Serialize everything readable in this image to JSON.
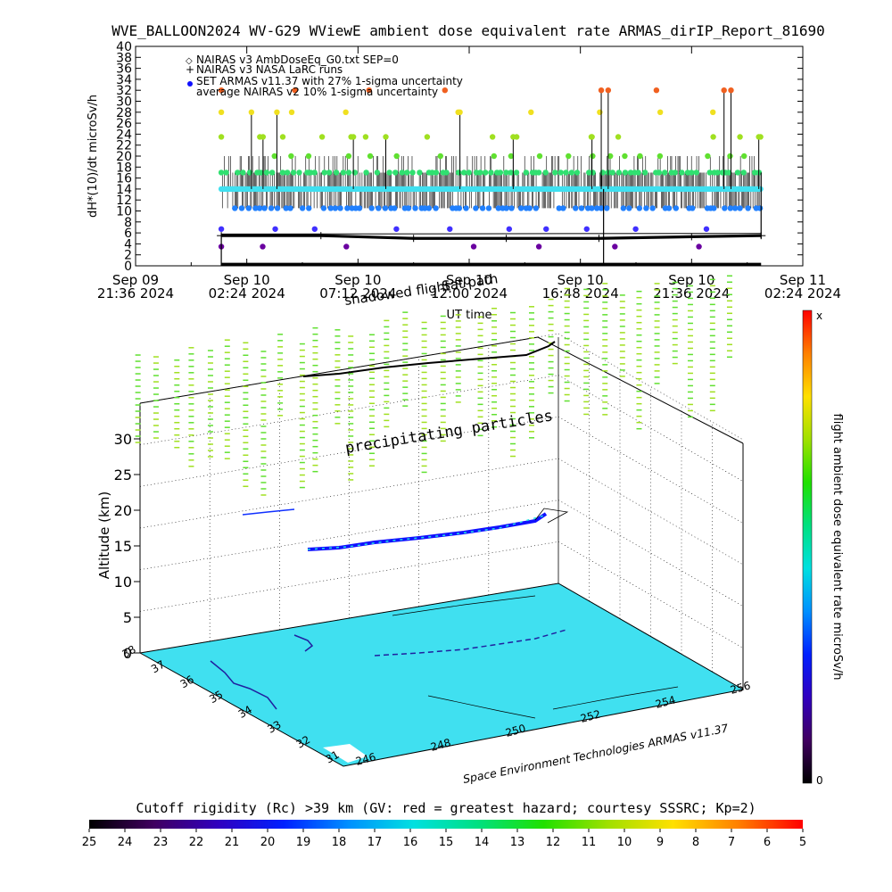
{
  "title": "WVE_BALLOON2024 WV-G29 WViewE ambient dose equivalent rate ARMAS_dirIP_Report_81690",
  "chart_data": [
    {
      "type": "scatter",
      "ylabel": "dH*(10)/dt microSv/h",
      "xlabel": "UT time",
      "ylim": [
        0,
        40
      ],
      "yticks": [
        "0",
        "2",
        "4",
        "6",
        "8",
        "10",
        "12",
        "14",
        "16",
        "18",
        "20",
        "22",
        "24",
        "26",
        "28",
        "30",
        "32",
        "34",
        "36",
        "38",
        "40"
      ],
      "xticks": [
        {
          "line1": "Sep 09",
          "line2": "21:36 2024"
        },
        {
          "line1": "Sep 10",
          "line2": "02:24 2024"
        },
        {
          "line1": "Sep 10",
          "line2": "07:12 2024"
        },
        {
          "line1": "Sep 10",
          "line2": "12:00 2024"
        },
        {
          "line1": "Sep 10",
          "line2": "16:48 2024"
        },
        {
          "line1": "Sep 10",
          "line2": "21:36 2024"
        },
        {
          "line1": "Sep 11",
          "line2": "02:24 2024"
        }
      ],
      "x_range_hours": [
        0,
        28.8
      ],
      "legend": [
        {
          "symbol": "◇",
          "label": "NAIRAS v3 AmbDoseEq_G0.txt SEP=0",
          "color": "#000000"
        },
        {
          "symbol": "+",
          "label": "NAIRAS v3 NASA LaRC runs",
          "color": "#000000"
        },
        {
          "symbol": "●",
          "label": "SET ARMAS v11.37 with 27% 1-sigma uncertainty",
          "color": "#1010ff"
        },
        {
          "symbol": "",
          "label": "average NAIRAS v2 10% 1-sigma uncertainty",
          "color": "#000000"
        }
      ],
      "legend_position": "top-left",
      "overlay_labels": [
        "shadowed flight",
        "Sat path"
      ],
      "series": [
        {
          "name": "SET ARMAS v11.37 with 27% 1-sigma uncertainty",
          "x_range_hours": [
            3.7,
            27.0
          ],
          "levels": [
            {
              "y": 14.0,
              "color": "#40e0f0",
              "density": "continuous"
            },
            {
              "y": 17.0,
              "color": "#30e070",
              "density": "frequent"
            },
            {
              "y": 10.5,
              "color": "#2080ff",
              "density": "frequent"
            },
            {
              "y": 20.0,
              "color": "#60e030",
              "density": "occasional"
            },
            {
              "y": 23.5,
              "color": "#a0e020",
              "density": "occasional"
            },
            {
              "y": 28.0,
              "color": "#f0e020",
              "density": "rare"
            },
            {
              "y": 32.0,
              "color": "#f06020",
              "density": "rare"
            },
            {
              "y": 6.7,
              "color": "#4030ff",
              "density": "rare"
            },
            {
              "y": 3.5,
              "color": "#6a00a0",
              "density": "rare"
            }
          ],
          "spikes_hours": [
            {
              "x": 5.0,
              "y": 28.0
            },
            {
              "x": 5.5,
              "y": 23.5
            },
            {
              "x": 6.1,
              "y": 28.0
            },
            {
              "x": 9.4,
              "y": 23.5
            },
            {
              "x": 10.8,
              "y": 23.5
            },
            {
              "x": 14.0,
              "y": 28.0
            },
            {
              "x": 16.3,
              "y": 23.5
            },
            {
              "x": 19.7,
              "y": 23.5
            },
            {
              "x": 20.1,
              "y": 32.0
            },
            {
              "x": 20.4,
              "y": 32.0
            },
            {
              "x": 25.4,
              "y": 32.0
            },
            {
              "x": 25.7,
              "y": 32.0
            },
            {
              "x": 26.9,
              "y": 23.5
            }
          ]
        },
        {
          "name": "NAIRAS v3 AmbDoseEq_G0.txt SEP=0",
          "points": [
            [
              3.7,
              5.5
            ],
            [
              8.0,
              5.5
            ],
            [
              12.0,
              5.0
            ],
            [
              16.0,
              5.0
            ],
            [
              20.0,
              5.0
            ],
            [
              24.0,
              5.3
            ],
            [
              27.0,
              5.5
            ]
          ],
          "color": "#000000"
        },
        {
          "name": "NAIRAS v3 NASA LaRC runs",
          "points": [
            [
              3.7,
              0.3
            ],
            [
              27.0,
              0.3
            ]
          ],
          "color": "#000000"
        },
        {
          "name": "average NAIRAS v2 10% 1-sigma uncertainty",
          "points": [
            [
              3.7,
              5.8
            ],
            [
              27.0,
              5.9
            ]
          ],
          "color": "#000000"
        }
      ]
    },
    {
      "type": "scatter",
      "ylabel": "Altitude (km)",
      "zticks": [
        "0",
        "5",
        "10",
        "15",
        "20",
        "25",
        "30"
      ],
      "zlim": [
        0,
        35
      ],
      "lat_ticks": [
        "38",
        "37",
        "36",
        "35",
        "34",
        "33",
        "32",
        "31"
      ],
      "lon_ticks": [
        "246",
        "248",
        "250",
        "252",
        "254",
        "256"
      ],
      "annotation": "precipitating particles",
      "credit": "Space Environment Technologies ARMAS v11.37",
      "flight_track": {
        "description_altitude_km": [
          18.5,
          19.0
        ],
        "color_min": "#1010ff",
        "color_max": "#20e0e0"
      }
    }
  ],
  "right_colorbar": {
    "label": "flight ambient dose equivalent rate microSv/h",
    "top_label": "x",
    "bottom_label": "0",
    "colors": [
      "#000000",
      "#400060",
      "#3000c0",
      "#0020ff",
      "#0090ff",
      "#00e0e0",
      "#00e080",
      "#20e000",
      "#a0e000",
      "#ffe000",
      "#ff8000",
      "#ff0000"
    ]
  },
  "bottom_colorbar": {
    "title": "Cutoff rigidity (Rc) >39 km (GV: red = greatest hazard; courtesy SSSRC; Kp=2)",
    "labels": [
      "25",
      "24",
      "23",
      "22",
      "21",
      "20",
      "19",
      "18",
      "17",
      "16",
      "15",
      "14",
      "13",
      "12",
      "11",
      "10",
      "9",
      "8",
      "7",
      "6",
      "5"
    ],
    "colors": [
      "#000000",
      "#400060",
      "#3000c0",
      "#0020ff",
      "#0090ff",
      "#00e0e0",
      "#00e080",
      "#20e000",
      "#a0e000",
      "#ffe000",
      "#ff8000",
      "#ff0000"
    ]
  },
  "ground_color": "#40e0f0"
}
